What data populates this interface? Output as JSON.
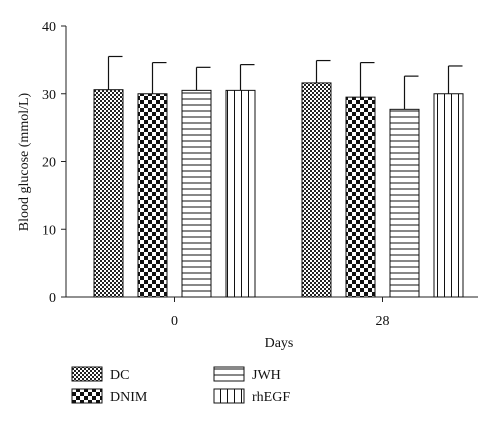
{
  "chart_data": {
    "type": "bar",
    "categories": [
      "0",
      "28"
    ],
    "xlabel": "Days",
    "ylabel": "Blood glucose (mmol/L)",
    "ylim": [
      0,
      40
    ],
    "yticks": [
      "0",
      "10",
      "20",
      "30",
      "40"
    ],
    "grid": false,
    "legend_position": "bottom-left",
    "series": [
      {
        "name": "DC",
        "pattern": "checker-fine",
        "values": [
          30.6,
          31.6
        ],
        "errors": [
          4.9,
          3.3
        ]
      },
      {
        "name": "DNIM",
        "pattern": "checker-coarse",
        "values": [
          30.0,
          29.5
        ],
        "errors": [
          4.6,
          5.1
        ]
      },
      {
        "name": "JWH",
        "pattern": "horizontal-lines",
        "values": [
          30.5,
          27.7
        ],
        "errors": [
          3.4,
          4.9
        ]
      },
      {
        "name": "rhEGF",
        "pattern": "vertical-lines",
        "values": [
          30.5,
          30.0
        ],
        "errors": [
          3.8,
          4.1
        ]
      }
    ]
  }
}
